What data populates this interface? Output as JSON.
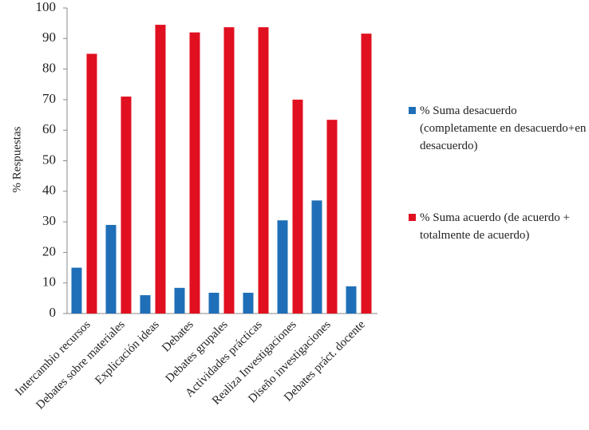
{
  "chart_data": {
    "type": "bar",
    "y_label": "% Respuestas",
    "categories": [
      "Intercambio recursos",
      "Debates sobre materiales",
      "Explicación ideas",
      "Debates",
      "Debates grupales",
      "Actividades prácticas",
      "Realiza Investigaciones",
      "Diseño investigaciones",
      "Debates práct. docente"
    ],
    "series": [
      {
        "name": "% Suma desacuerdo (completamente en desacuerdo+en desacuerdo)",
        "color": "#1f6fb8",
        "values": [
          15,
          29,
          6,
          8.4,
          6.8,
          6.8,
          30.5,
          37,
          8.9
        ]
      },
      {
        "name": "% Suma acuerdo (de acuerdo + totalmente de acuerdo)",
        "color": "#e01020",
        "values": [
          85,
          71,
          94.5,
          92,
          93.7,
          93.7,
          70,
          63.4,
          91.6
        ]
      }
    ],
    "ylim": [
      0,
      100
    ],
    "yticks": [
      0,
      10,
      20,
      30,
      40,
      50,
      60,
      70,
      80,
      90,
      100
    ],
    "grid": false
  }
}
